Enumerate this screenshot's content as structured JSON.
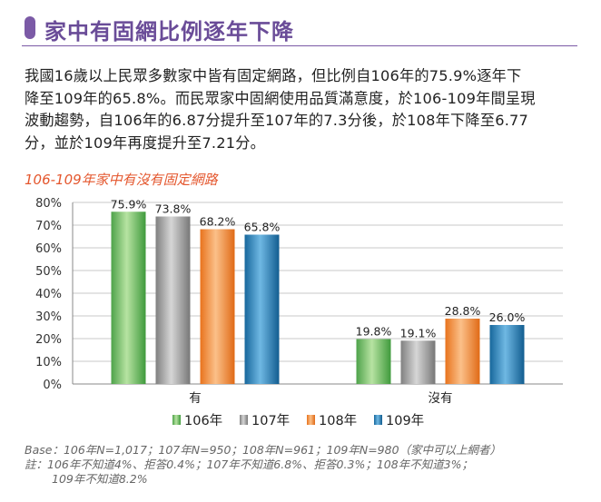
{
  "header": {
    "title": "家中有固網比例逐年下降"
  },
  "paragraph": {
    "line1": "我國16歲以上民眾多數家中皆有固定網路，但比例自106年的75.9%逐年下",
    "line2": "降至109年的65.8%。而民眾家中固網使用品質滿意度，於106-109年間呈現",
    "line3": "波動趨勢，自106年的6.87分提升至107年的7.3分後，於108年下降至6.77",
    "line4": "分，並於109年再度提升至7.21分。"
  },
  "chart_data": {
    "type": "bar",
    "title": "106-109年家中有沒有固定網路",
    "categories": [
      "有",
      "沒有"
    ],
    "series": [
      {
        "name": "106年",
        "values": [
          75.9,
          19.8
        ],
        "labels": [
          "75.9%",
          "19.8%"
        ],
        "color": "#5cb85c"
      },
      {
        "name": "107年",
        "values": [
          73.8,
          19.1
        ],
        "labels": [
          "73.8%",
          "19.1%"
        ],
        "color": "#9a9a9a"
      },
      {
        "name": "108年",
        "values": [
          68.2,
          28.8
        ],
        "labels": [
          "68.2%",
          "28.8%"
        ],
        "color": "#f0882a"
      },
      {
        "name": "109年",
        "values": [
          65.8,
          26.0
        ],
        "labels": [
          "65.8%",
          "26.0%"
        ],
        "color": "#1f7fb8"
      }
    ],
    "ylim": [
      0,
      80
    ],
    "yticks": [
      "0%",
      "10%",
      "20%",
      "30%",
      "40%",
      "50%",
      "60%",
      "70%",
      "80%"
    ],
    "grid": true,
    "legend_position": "bottom"
  },
  "footnote": {
    "base": "Base：106年N=1,017；107年N=950；108年N=961；109年N=980（家中可以上網者）",
    "note_line1": "註：106年不知道4%、拒答0.4%；107年不知道6.8%、拒答0.3%；108年不知道3%；",
    "note_line2": "109年不知道8.2%"
  }
}
